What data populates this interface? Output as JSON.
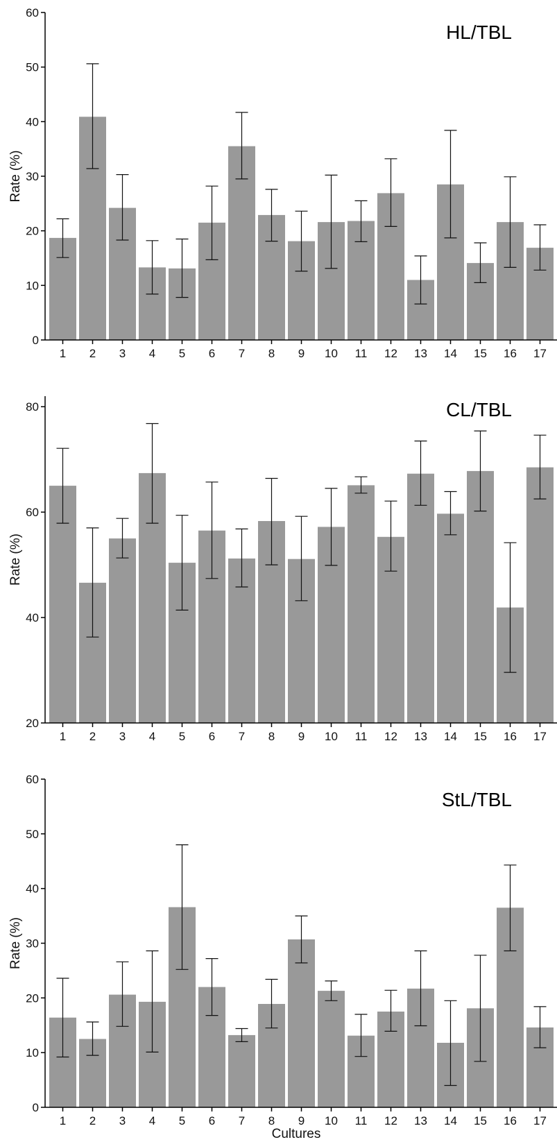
{
  "chart_data": [
    {
      "type": "bar",
      "title": "HL/TBL",
      "ylabel": "Rate (%)",
      "xlabel": "",
      "ylim": [
        0,
        60
      ],
      "yticks": [
        0,
        10,
        20,
        30,
        40,
        50,
        60
      ],
      "grid": false,
      "categories": [
        "1",
        "2",
        "3",
        "4",
        "5",
        "6",
        "7",
        "8",
        "9",
        "10",
        "11",
        "12",
        "13",
        "14",
        "15",
        "16",
        "17"
      ],
      "values": [
        18.7,
        40.9,
        24.2,
        13.3,
        13.1,
        21.5,
        35.5,
        22.9,
        18.1,
        21.6,
        21.8,
        26.9,
        11.0,
        28.5,
        14.1,
        21.6,
        16.9
      ],
      "err_low": [
        15.1,
        31.4,
        18.3,
        8.4,
        7.8,
        14.7,
        29.5,
        18.1,
        12.6,
        13.1,
        18.0,
        20.8,
        6.6,
        18.7,
        10.5,
        13.3,
        12.8
      ],
      "err_high": [
        22.2,
        50.6,
        30.3,
        18.2,
        18.5,
        28.2,
        41.7,
        27.6,
        23.6,
        30.2,
        25.5,
        33.2,
        15.4,
        38.4,
        17.8,
        29.9,
        21.1
      ]
    },
    {
      "type": "bar",
      "title": "CL/TBL",
      "ylabel": "Rate (%)",
      "xlabel": "",
      "ylim": [
        20,
        82
      ],
      "yticks": [
        20,
        40,
        60,
        80
      ],
      "grid": false,
      "categories": [
        "1",
        "2",
        "3",
        "4",
        "5",
        "6",
        "7",
        "8",
        "9",
        "10",
        "11",
        "12",
        "13",
        "14",
        "15",
        "16",
        "17"
      ],
      "values": [
        65.0,
        46.6,
        55.0,
        67.4,
        50.4,
        56.5,
        51.2,
        58.3,
        51.1,
        57.2,
        65.1,
        55.3,
        67.3,
        59.7,
        67.8,
        41.9,
        68.5
      ],
      "err_low": [
        57.9,
        36.3,
        51.3,
        57.9,
        41.4,
        47.4,
        45.8,
        50.0,
        43.2,
        49.9,
        63.6,
        48.8,
        61.3,
        55.7,
        60.2,
        29.6,
        62.5
      ],
      "err_high": [
        72.1,
        57.0,
        58.8,
        76.8,
        59.4,
        65.7,
        56.8,
        66.4,
        59.2,
        64.5,
        66.7,
        62.1,
        73.5,
        63.9,
        75.4,
        54.2,
        74.6
      ]
    },
    {
      "type": "bar",
      "title": "StL/TBL",
      "ylabel": "Rate (%)",
      "xlabel": "Cultures",
      "ylim": [
        0,
        60
      ],
      "yticks": [
        0,
        10,
        20,
        30,
        40,
        50,
        60
      ],
      "grid": false,
      "categories": [
        "1",
        "2",
        "3",
        "4",
        "5",
        "6",
        "7",
        "8",
        "9",
        "10",
        "11",
        "12",
        "13",
        "14",
        "15",
        "16",
        "17"
      ],
      "values": [
        16.4,
        12.5,
        20.6,
        19.3,
        36.6,
        22.0,
        13.2,
        18.9,
        30.7,
        21.3,
        13.1,
        17.5,
        21.7,
        11.8,
        18.1,
        36.5,
        14.6
      ],
      "err_low": [
        9.2,
        9.5,
        14.8,
        10.1,
        25.2,
        16.8,
        12.0,
        14.5,
        26.4,
        19.5,
        9.3,
        13.9,
        14.9,
        4.0,
        8.4,
        28.6,
        10.9
      ],
      "err_high": [
        23.6,
        15.6,
        26.6,
        28.6,
        48.0,
        27.2,
        14.4,
        23.4,
        35.0,
        23.1,
        17.0,
        21.4,
        28.6,
        19.5,
        27.8,
        44.3,
        18.4
      ]
    }
  ]
}
